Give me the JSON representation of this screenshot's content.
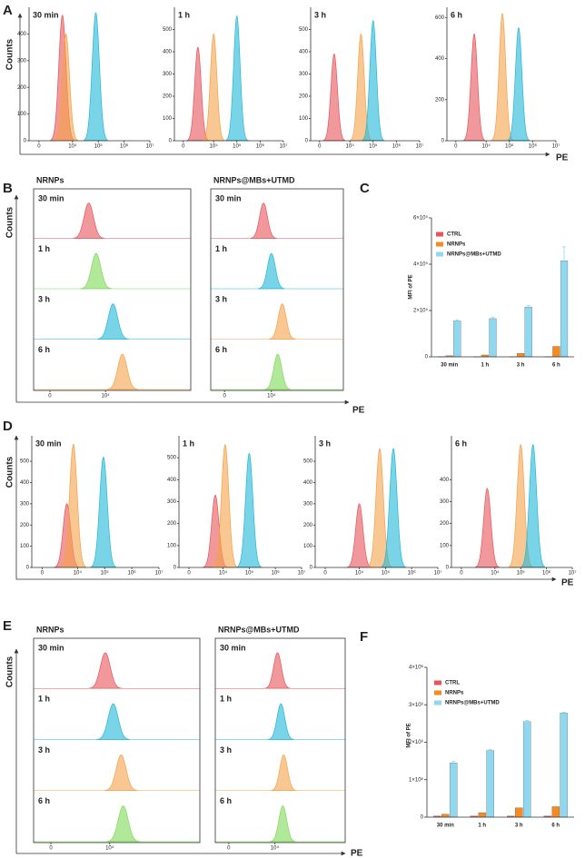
{
  "chart_data": [
    {
      "panel": "A",
      "type": "density",
      "ylabel": "Counts",
      "xlabel": "PE",
      "subplots": [
        {
          "title": "30 min",
          "xlim": [
            -1000,
            10000000
          ],
          "ylim": [
            0,
            500
          ],
          "yticks": [
            0,
            100,
            200,
            300,
            400
          ],
          "xticks": [
            0,
            {
              "value": 10000,
              "label": "10⁴"
            },
            {
              "value": 100000,
              "label": "10⁵"
            },
            {
              "value": 1000000,
              "label": "10⁶"
            },
            {
              "value": 10000000,
              "label": "10⁷"
            }
          ],
          "peaks": [
            {
              "color": "#e8545a",
              "x": 4000,
              "y": 470
            },
            {
              "color": "#f5a24a",
              "x": 5500,
              "y": 400
            },
            {
              "color": "#22b8d8",
              "x": 80000,
              "y": 480
            }
          ]
        },
        {
          "title": "1 h",
          "xlim": [
            -1000,
            10000000
          ],
          "ylim": [
            0,
            600
          ],
          "yticks": [
            0,
            100,
            200,
            300,
            400,
            500
          ],
          "xticks": [
            0,
            {
              "value": 10000,
              "label": "10⁴"
            },
            {
              "value": 100000,
              "label": "10⁵"
            },
            {
              "value": 1000000,
              "label": "10⁶"
            },
            {
              "value": 10000000,
              "label": "10⁷"
            }
          ],
          "peaks": [
            {
              "color": "#e8545a",
              "x": 2000,
              "y": 420
            },
            {
              "color": "#f5a24a",
              "x": 10000,
              "y": 480
            },
            {
              "color": "#22b8d8",
              "x": 100000,
              "y": 560
            }
          ]
        },
        {
          "title": "3 h",
          "xlim": [
            -1000,
            10000000
          ],
          "ylim": [
            0,
            600
          ],
          "yticks": [
            0,
            100,
            200,
            300,
            400,
            500
          ],
          "xticks": [
            0,
            {
              "value": 10000,
              "label": "10⁴"
            },
            {
              "value": 100000,
              "label": "10⁵"
            },
            {
              "value": 1000000,
              "label": "10⁶"
            },
            {
              "value": 10000000,
              "label": "10⁷"
            }
          ],
          "peaks": [
            {
              "color": "#e8545a",
              "x": 2000,
              "y": 390
            },
            {
              "color": "#f5a24a",
              "x": 30000,
              "y": 480
            },
            {
              "color": "#22b8d8",
              "x": 100000,
              "y": 540
            }
          ]
        },
        {
          "title": "6 h",
          "xlim": [
            -1000,
            10000000
          ],
          "ylim": [
            0,
            650
          ],
          "yticks": [
            0,
            200,
            400,
            600
          ],
          "xticks": [
            0,
            {
              "value": 10000,
              "label": "10⁴"
            },
            {
              "value": 100000,
              "label": "10⁵"
            },
            {
              "value": 1000000,
              "label": "10⁶"
            },
            {
              "value": 10000000,
              "label": "10⁷"
            }
          ],
          "peaks": [
            {
              "color": "#e8545a",
              "x": 3000,
              "y": 520
            },
            {
              "color": "#f5a24a",
              "x": 50000,
              "y": 620
            },
            {
              "color": "#22b8d8",
              "x": 250000,
              "y": 550
            }
          ]
        }
      ]
    },
    {
      "panel": "B",
      "type": "ridgeline",
      "ylabel": "Counts",
      "xlabel": "PE",
      "groups": [
        {
          "title": "NRNPs",
          "xlim": [
            -1000,
            1000000
          ],
          "xticks": [
            0,
            {
              "value": 10000,
              "label": "10⁴"
            }
          ],
          "rows": [
            {
              "label": "30 min",
              "color": "#e8545a",
              "x": 4000
            },
            {
              "label": "1 h",
              "color": "#7ed957",
              "x": 6000
            },
            {
              "label": "3 h",
              "color": "#22b8d8",
              "x": 15000
            },
            {
              "label": "6 h",
              "color": "#f5a24a",
              "x": 25000
            }
          ]
        },
        {
          "title": "NRNPs@MBs+UTMD",
          "xlim": [
            -1000,
            1000000
          ],
          "xticks": [
            0,
            {
              "value": 10000,
              "label": "10⁴"
            }
          ],
          "rows": [
            {
              "label": "30 min",
              "color": "#e8545a",
              "x": 6000
            },
            {
              "label": "1 h",
              "color": "#22b8d8",
              "x": 10000
            },
            {
              "label": "3 h",
              "color": "#f5a24a",
              "x": 20000
            },
            {
              "label": "6 h",
              "color": "#7ed957",
              "x": 15000
            }
          ]
        }
      ]
    },
    {
      "panel": "C",
      "type": "bar",
      "ylabel": "MFI of PE",
      "categories": [
        "30 min",
        "1 h",
        "3 h",
        "6 h"
      ],
      "ylim": [
        0,
        600000
      ],
      "yticks": [
        0,
        {
          "value": 200000,
          "label": "2×10⁵"
        },
        {
          "value": 400000,
          "label": "4×10⁵"
        },
        {
          "value": 600000,
          "label": "6×10⁵"
        }
      ],
      "series": [
        {
          "name": "CTRL",
          "color": "#e8545a",
          "values": [
            1000,
            1000,
            1000,
            1000
          ]
        },
        {
          "name": "NRNPs",
          "color": "#f58a1f",
          "values": [
            5000,
            8000,
            15000,
            45000
          ]
        },
        {
          "name": "NRNPs@MBs+UTMD",
          "color": "#8fd8f0",
          "values": [
            155000,
            165000,
            215000,
            415000
          ],
          "errors": [
            5000,
            5000,
            6000,
            60000
          ]
        }
      ]
    },
    {
      "panel": "D",
      "type": "density",
      "ylabel": "Counts",
      "xlabel": "PE",
      "subplots": [
        {
          "title": "30 min",
          "xlim": [
            -1000,
            10000000
          ],
          "ylim": [
            0,
            620
          ],
          "yticks": [
            0,
            100,
            200,
            300,
            400,
            500
          ],
          "xticks": [
            0,
            {
              "value": 10000,
              "label": "10⁴"
            },
            {
              "value": 100000,
              "label": "10⁵"
            },
            {
              "value": 1000000,
              "label": "10⁶"
            },
            {
              "value": 10000000,
              "label": "10⁷"
            }
          ],
          "peaks": [
            {
              "color": "#e8545a",
              "x": 4000,
              "y": 300
            },
            {
              "color": "#f5a24a",
              "x": 7000,
              "y": 580
            },
            {
              "color": "#22b8d8",
              "x": 90000,
              "y": 520
            }
          ]
        },
        {
          "title": "1 h",
          "xlim": [
            -1000,
            10000000
          ],
          "ylim": [
            0,
            600
          ],
          "yticks": [
            0,
            100,
            200,
            300,
            400,
            500
          ],
          "xticks": [
            0,
            {
              "value": 10000,
              "label": "10⁴"
            },
            {
              "value": 100000,
              "label": "10⁵"
            },
            {
              "value": 1000000,
              "label": "10⁶"
            },
            {
              "value": 10000000,
              "label": "10⁷"
            }
          ],
          "peaks": [
            {
              "color": "#e8545a",
              "x": 5000,
              "y": 330
            },
            {
              "color": "#f5a24a",
              "x": 12000,
              "y": 560
            },
            {
              "color": "#22b8d8",
              "x": 100000,
              "y": 520
            }
          ]
        },
        {
          "title": "3 h",
          "xlim": [
            -1000,
            10000000
          ],
          "ylim": [
            0,
            620
          ],
          "yticks": [
            0,
            100,
            200,
            300,
            400,
            500
          ],
          "xticks": [
            0,
            {
              "value": 10000,
              "label": "10⁴"
            },
            {
              "value": 100000,
              "label": "10⁵"
            },
            {
              "value": 1000000,
              "label": "10⁶"
            },
            {
              "value": 10000000,
              "label": "10⁷"
            }
          ],
          "peaks": [
            {
              "color": "#e8545a",
              "x": 10000,
              "y": 300
            },
            {
              "color": "#f5a24a",
              "x": 60000,
              "y": 560
            },
            {
              "color": "#22b8d8",
              "x": 200000,
              "y": 560
            }
          ]
        },
        {
          "title": "6 h",
          "xlim": [
            -1000,
            10000000
          ],
          "ylim": [
            0,
            600
          ],
          "yticks": [
            0,
            100,
            200,
            300,
            400
          ],
          "xticks": [
            0,
            {
              "value": 10000,
              "label": "10⁴"
            },
            {
              "value": 100000,
              "label": "10⁵"
            },
            {
              "value": 1000000,
              "label": "10⁶"
            },
            {
              "value": 10000000,
              "label": "10⁷"
            }
          ],
          "peaks": [
            {
              "color": "#e8545a",
              "x": 5000,
              "y": 360
            },
            {
              "color": "#f5a24a",
              "x": 100000,
              "y": 560
            },
            {
              "color": "#22b8d8",
              "x": 300000,
              "y": 560
            }
          ]
        }
      ]
    },
    {
      "panel": "E",
      "type": "ridgeline",
      "ylabel": "Counts",
      "xlabel": "PE",
      "groups": [
        {
          "title": "NRNPs",
          "xlim": [
            -1000,
            1000000
          ],
          "xticks": [
            0,
            {
              "value": 10000,
              "label": "10⁴"
            }
          ],
          "rows": [
            {
              "label": "30 min",
              "color": "#e8545a",
              "x": 8000
            },
            {
              "label": "1 h",
              "color": "#22b8d8",
              "x": 12000
            },
            {
              "label": "3 h",
              "color": "#f5a24a",
              "x": 18000
            },
            {
              "label": "6 h",
              "color": "#7ed957",
              "x": 20000
            }
          ]
        },
        {
          "title": "NRNPs@MBs+UTMD",
          "xlim": [
            -1000,
            1000000
          ],
          "xticks": [
            0,
            {
              "value": 10000,
              "label": "10⁴"
            }
          ],
          "rows": [
            {
              "label": "30 min",
              "color": "#e8545a",
              "x": 12000
            },
            {
              "label": "1 h",
              "color": "#22b8d8",
              "x": 15000
            },
            {
              "label": "3 h",
              "color": "#f5a24a",
              "x": 18000
            },
            {
              "label": "6 h",
              "color": "#7ed957",
              "x": 17000
            }
          ]
        }
      ]
    },
    {
      "panel": "F",
      "type": "bar",
      "ylabel": "MFI of PE",
      "categories": [
        "30 min",
        "1 h",
        "3 h",
        "6 h"
      ],
      "ylim": [
        0,
        4000000
      ],
      "yticks": [
        0,
        {
          "value": 1000000,
          "label": "1×10⁶"
        },
        {
          "value": 2000000,
          "label": "2×10⁶"
        },
        {
          "value": 3000000,
          "label": "3×10⁶"
        },
        {
          "value": 4000000,
          "label": "4×10⁶"
        }
      ],
      "series": [
        {
          "name": "CTRL",
          "color": "#e8545a",
          "values": [
            30000,
            30000,
            30000,
            30000
          ]
        },
        {
          "name": "NRNPs",
          "color": "#f58a1f",
          "values": [
            80000,
            120000,
            250000,
            280000
          ]
        },
        {
          "name": "NRNPs@MBs+UTMD",
          "color": "#8fd8f0",
          "values": [
            1450000,
            1780000,
            2550000,
            2780000
          ],
          "errors": [
            40000,
            30000,
            30000,
            20000
          ]
        }
      ]
    }
  ]
}
